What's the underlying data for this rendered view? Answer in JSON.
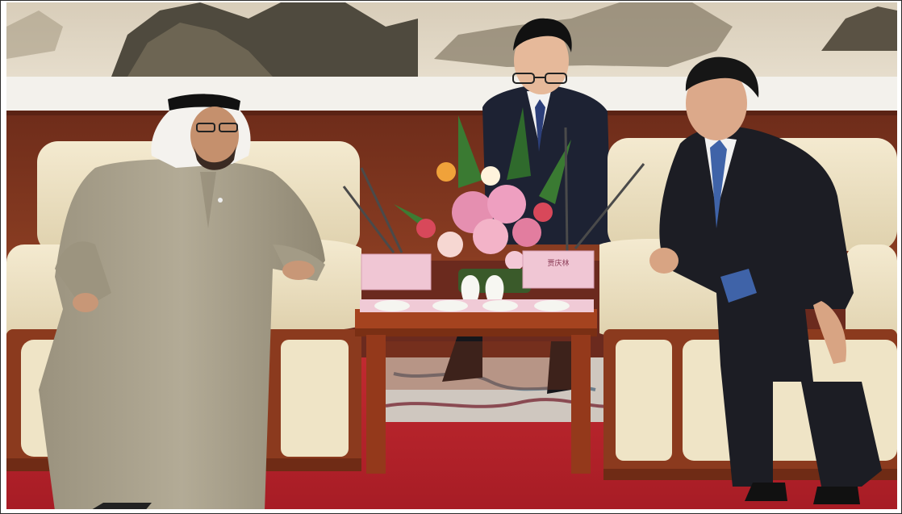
{
  "photo": {
    "subjects": [
      "guest-in-kandura",
      "interpreter",
      "host-in-suit"
    ],
    "palette": {
      "painting": "#cfc3b0",
      "wood_panel": "#7a3420",
      "sofa": "#efe4c6",
      "sofa_wood": "#8b3a1e",
      "carpet": "#b3202a",
      "robe": "#a9a08c",
      "suit": "#1c1d24",
      "flowers_pink": "#e58fb0"
    },
    "placards": {
      "left": "",
      "right": "贾庆林"
    }
  }
}
